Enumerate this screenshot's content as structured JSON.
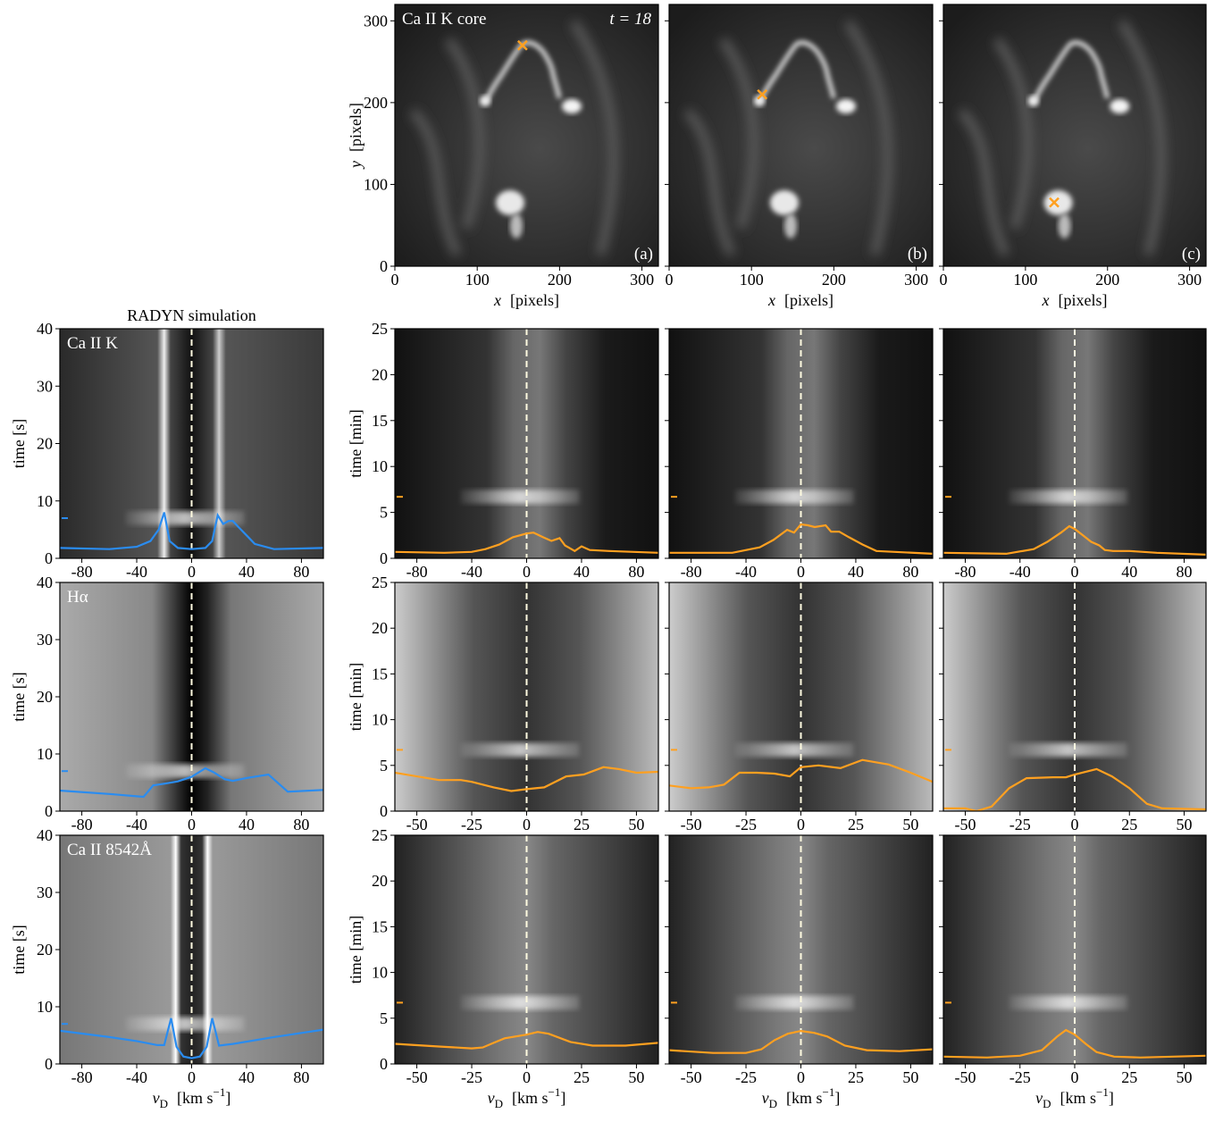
{
  "chart_data": [
    {
      "type": "image",
      "label": "Ca II K core",
      "annotation": "t = 18",
      "panel": "(a)",
      "marker": [
        155,
        270
      ],
      "marker_color": "#ffa020",
      "xlim": [
        0,
        320
      ],
      "ylim": [
        0,
        320
      ],
      "xticks": [
        0,
        100,
        200,
        300
      ],
      "yticks": [
        0,
        100,
        200,
        300
      ],
      "xlabel": {
        "var": "x",
        "unit": "[pixels]"
      },
      "ylabel": {
        "var": "y",
        "unit": "[pixels]"
      }
    },
    {
      "type": "image",
      "panel": "(b)",
      "marker": [
        113,
        210
      ],
      "marker_color": "#ffa020",
      "xlim": [
        0,
        320
      ],
      "ylim": [
        0,
        320
      ],
      "xticks": [
        0,
        100,
        200,
        300
      ],
      "xlabel": {
        "var": "x",
        "unit": "[pixels]"
      }
    },
    {
      "type": "image",
      "panel": "(c)",
      "marker": [
        135,
        78
      ],
      "marker_color": "#ffa020",
      "xlim": [
        0,
        320
      ],
      "ylim": [
        0,
        320
      ],
      "xticks": [
        0,
        100,
        200,
        300
      ],
      "xlabel": {
        "var": "x",
        "unit": "[pixels]"
      }
    },
    {
      "type": "spectrogram",
      "title": "RADYN simulation",
      "label": "Ca II K",
      "color": "#2a8cf0",
      "time_marker": 7,
      "xlim": [
        -96,
        96
      ],
      "ylim": [
        0,
        40
      ],
      "xticks": [
        -80,
        -40,
        0,
        40,
        80
      ],
      "yticks": [
        0,
        10,
        20,
        30,
        40
      ],
      "ylabel": "time  [s]",
      "x": [
        -96,
        -60,
        -40,
        -30,
        -24,
        -20,
        -16,
        -10,
        0,
        10,
        15,
        19,
        23,
        27,
        30,
        34,
        40,
        46,
        60,
        96
      ],
      "values": [
        1.8,
        1.6,
        2,
        3,
        5,
        8,
        3,
        1.8,
        1.6,
        1.8,
        3,
        7.5,
        6,
        6.5,
        6.5,
        5.5,
        4,
        2.5,
        1.6,
        1.8
      ]
    },
    {
      "type": "spectrogram",
      "color": "#ffa020",
      "time_marker": 6.7,
      "xlim": [
        -96,
        96
      ],
      "ylim": [
        0,
        25
      ],
      "xticks": [
        -80,
        -40,
        0,
        40,
        80
      ],
      "yticks": [
        0,
        5,
        10,
        15,
        20,
        25
      ],
      "ylabel": "time  [min]",
      "x": [
        -96,
        -60,
        -40,
        -30,
        -20,
        -10,
        0,
        5,
        12,
        18,
        24,
        28,
        35,
        40,
        46,
        60,
        96
      ],
      "values": [
        0.7,
        0.6,
        0.7,
        1,
        1.5,
        2.3,
        2.7,
        2.8,
        2.3,
        1.9,
        2.2,
        1.4,
        0.8,
        1.3,
        0.9,
        0.8,
        0.6
      ]
    },
    {
      "type": "spectrogram",
      "color": "#ffa020",
      "time_marker": 6.7,
      "xlim": [
        -96,
        96
      ],
      "ylim": [
        0,
        25
      ],
      "xticks": [
        -80,
        -40,
        0,
        40,
        80
      ],
      "x": [
        -96,
        -50,
        -30,
        -20,
        -10,
        -5,
        0,
        5,
        10,
        18,
        22,
        28,
        35,
        45,
        55,
        96
      ],
      "values": [
        0.6,
        0.6,
        1.2,
        2,
        3.1,
        2.8,
        3.7,
        3.6,
        3.4,
        3.6,
        2.9,
        2.9,
        2.3,
        1.5,
        0.8,
        0.5
      ]
    },
    {
      "type": "spectrogram",
      "color": "#ffa020",
      "time_marker": 6.7,
      "xlim": [
        -96,
        96
      ],
      "ylim": [
        0,
        25
      ],
      "xticks": [
        -80,
        -40,
        0,
        40,
        80
      ],
      "x": [
        -96,
        -50,
        -30,
        -20,
        -10,
        -4,
        0,
        6,
        12,
        18,
        22,
        28,
        40,
        60,
        96
      ],
      "values": [
        0.6,
        0.5,
        1,
        1.8,
        2.8,
        3.5,
        3.2,
        2.5,
        1.8,
        1.4,
        0.9,
        0.8,
        0.8,
        0.6,
        0.4
      ]
    },
    {
      "type": "spectrogram",
      "label": "Hα",
      "color": "#2a8cf0",
      "time_marker": 7,
      "xlim": [
        -96,
        96
      ],
      "ylim": [
        0,
        40
      ],
      "xticks": [
        -80,
        -40,
        0,
        40,
        80
      ],
      "yticks": [
        0,
        10,
        20,
        30,
        40
      ],
      "ylabel": "time  [s]",
      "x": [
        -96,
        -60,
        -40,
        -35,
        -28,
        -20,
        -10,
        0,
        10,
        16,
        24,
        30,
        40,
        56,
        70,
        96
      ],
      "values": [
        3.6,
        3,
        2.6,
        2.5,
        4.5,
        4.8,
        5.2,
        6,
        7.5,
        6.8,
        5.6,
        5.3,
        5.8,
        6.4,
        3.4,
        3.7
      ]
    },
    {
      "type": "spectrogram",
      "color": "#ffa020",
      "time_marker": 6.7,
      "xlim": [
        -60,
        60
      ],
      "ylim": [
        0,
        25
      ],
      "xticks": [
        -50,
        -25,
        0,
        25,
        50
      ],
      "yticks": [
        0,
        5,
        10,
        15,
        20,
        25
      ],
      "ylabel": "time  [min]",
      "x": [
        -60,
        -50,
        -40,
        -30,
        -25,
        -15,
        -7,
        0,
        8,
        18,
        26,
        35,
        42,
        50,
        60
      ],
      "values": [
        4.2,
        3.8,
        3.4,
        3.4,
        3.2,
        2.6,
        2.2,
        2.4,
        2.6,
        3.8,
        4,
        4.8,
        4.6,
        4.2,
        4.3
      ]
    },
    {
      "type": "spectrogram",
      "color": "#ffa020",
      "time_marker": 6.7,
      "xlim": [
        -60,
        60
      ],
      "ylim": [
        0,
        25
      ],
      "xticks": [
        -50,
        -25,
        0,
        25,
        50
      ],
      "x": [
        -60,
        -50,
        -42,
        -35,
        -28,
        -20,
        -12,
        -5,
        0,
        8,
        18,
        28,
        40,
        50,
        60
      ],
      "values": [
        2.8,
        2.5,
        2.6,
        2.9,
        4.2,
        4.2,
        4.1,
        3.8,
        4.8,
        5,
        4.7,
        5.6,
        5.1,
        4.2,
        3.2
      ]
    },
    {
      "type": "spectrogram",
      "color": "#ffa020",
      "time_marker": 6.7,
      "xlim": [
        -60,
        60
      ],
      "ylim": [
        0,
        25
      ],
      "xticks": [
        -50,
        -25,
        0,
        25,
        50
      ],
      "x": [
        -60,
        -50,
        -45,
        -38,
        -30,
        -22,
        -10,
        -4,
        0,
        10,
        17,
        25,
        33,
        40,
        60
      ],
      "values": [
        0.3,
        0.3,
        0,
        0.5,
        2.5,
        3.6,
        3.7,
        3.7,
        4,
        4.6,
        3.8,
        2.5,
        0.8,
        0.3,
        0.2
      ]
    },
    {
      "type": "spectrogram",
      "label": "Ca II 8542Å",
      "color": "#2a8cf0",
      "time_marker": 7,
      "xlim": [
        -96,
        96
      ],
      "ylim": [
        0,
        40
      ],
      "xticks": [
        -80,
        -40,
        0,
        40,
        80
      ],
      "yticks": [
        0,
        10,
        20,
        30,
        40
      ],
      "ylabel": "time  [s]",
      "xlabel": {
        "var": "v",
        "sub": "D",
        "unit": "[km s",
        "sup": "−1",
        "close": "]"
      },
      "x": [
        -96,
        -60,
        -40,
        -25,
        -20,
        -15,
        -11,
        -6,
        0,
        6,
        11,
        15,
        20,
        30,
        60,
        96
      ],
      "values": [
        5.8,
        4.7,
        4,
        3.3,
        3.3,
        8,
        3,
        1.3,
        1,
        1.3,
        3,
        8,
        3.2,
        3.5,
        4.7,
        6
      ]
    },
    {
      "type": "spectrogram",
      "color": "#ffa020",
      "time_marker": 6.7,
      "xlim": [
        -60,
        60
      ],
      "ylim": [
        0,
        25
      ],
      "xticks": [
        -50,
        -25,
        0,
        25,
        50
      ],
      "yticks": [
        0,
        5,
        10,
        15,
        20,
        25
      ],
      "ylabel": "time  [min]",
      "xlabel": {
        "var": "v",
        "sub": "D",
        "unit": "[km s",
        "sup": "−1",
        "close": "]"
      },
      "x": [
        -60,
        -40,
        -25,
        -20,
        -15,
        -10,
        0,
        5,
        10,
        20,
        30,
        45,
        60
      ],
      "values": [
        2.2,
        1.9,
        1.7,
        1.8,
        2.3,
        2.8,
        3.2,
        3.5,
        3.3,
        2.4,
        2,
        2,
        2.3
      ]
    },
    {
      "type": "spectrogram",
      "color": "#ffa020",
      "time_marker": 6.7,
      "xlim": [
        -60,
        60
      ],
      "ylim": [
        0,
        25
      ],
      "xticks": [
        -50,
        -25,
        0,
        25,
        50
      ],
      "xlabel": {
        "var": "v",
        "sub": "D",
        "unit": "[km s",
        "sup": "−1",
        "close": "]"
      },
      "x": [
        -60,
        -40,
        -25,
        -18,
        -12,
        -6,
        0,
        6,
        12,
        20,
        30,
        45,
        60
      ],
      "values": [
        1.5,
        1.2,
        1.2,
        1.6,
        2.6,
        3.3,
        3.6,
        3.4,
        3,
        2,
        1.5,
        1.4,
        1.6
      ]
    },
    {
      "type": "spectrogram",
      "color": "#ffa020",
      "time_marker": 6.7,
      "xlim": [
        -60,
        60
      ],
      "ylim": [
        0,
        25
      ],
      "xticks": [
        -50,
        -25,
        0,
        25,
        50
      ],
      "xlabel": {
        "var": "v",
        "sub": "D",
        "unit": "[km s",
        "sup": "−1",
        "close": "]"
      },
      "x": [
        -60,
        -40,
        -25,
        -15,
        -8,
        -4,
        0,
        5,
        10,
        18,
        30,
        60
      ],
      "values": [
        0.8,
        0.7,
        0.9,
        1.5,
        3,
        3.7,
        3.2,
        2.2,
        1.3,
        0.8,
        0.7,
        0.9
      ]
    }
  ]
}
